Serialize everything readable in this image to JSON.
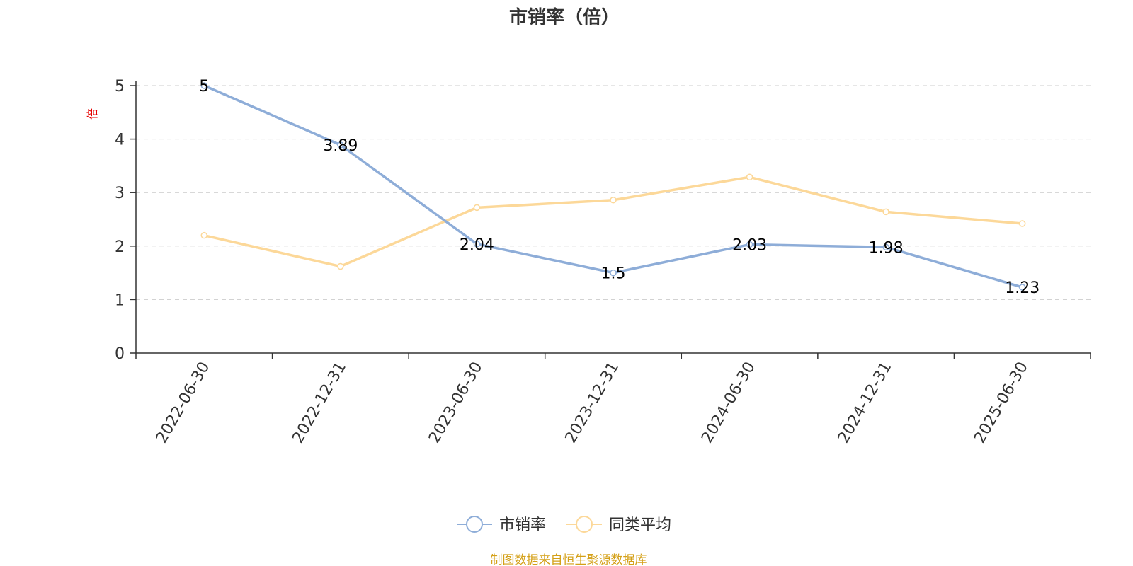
{
  "chart_data": {
    "type": "line",
    "title": "市销率（倍）",
    "ylabel": "倍",
    "ylim": [
      0,
      5
    ],
    "yticks": [
      0,
      1,
      2,
      3,
      4,
      5
    ],
    "categories": [
      "2022-06-30",
      "2022-12-31",
      "2023-06-30",
      "2023-12-31",
      "2024-06-30",
      "2024-12-31",
      "2025-06-30"
    ],
    "series": [
      {
        "name": "市销率",
        "values": [
          5,
          3.89,
          2.04,
          1.5,
          2.03,
          1.98,
          1.23
        ],
        "color": "#8eadd8",
        "show_labels": true
      },
      {
        "name": "同类平均",
        "values": [
          2.2,
          1.62,
          2.72,
          2.86,
          3.29,
          2.64,
          2.42
        ],
        "color": "#fcd899",
        "show_labels": false
      }
    ],
    "grid": true,
    "legend_position": "bottom-center",
    "source": "制图数据来自恒生聚源数据库"
  },
  "colors": {
    "title": "#333333",
    "axis": "#333333",
    "grid": "#cccccc",
    "ylabel": "#e60000",
    "source": "#d4a017",
    "label": "#000000"
  }
}
